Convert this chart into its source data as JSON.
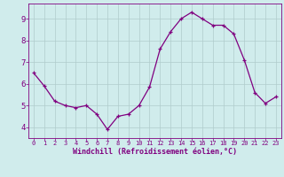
{
  "x": [
    0,
    1,
    2,
    3,
    4,
    5,
    6,
    7,
    8,
    9,
    10,
    11,
    12,
    13,
    14,
    15,
    16,
    17,
    18,
    19,
    20,
    21,
    22,
    23
  ],
  "y": [
    6.5,
    5.9,
    5.2,
    5.0,
    4.9,
    5.0,
    4.6,
    3.9,
    4.5,
    4.6,
    5.0,
    5.85,
    7.6,
    8.4,
    9.0,
    9.3,
    9.0,
    8.7,
    8.7,
    8.3,
    7.1,
    5.6,
    5.1,
    5.4
  ],
  "xlim": [
    -0.5,
    23.5
  ],
  "ylim": [
    3.5,
    9.7
  ],
  "yticks": [
    4,
    5,
    6,
    7,
    8,
    9
  ],
  "xticks": [
    0,
    1,
    2,
    3,
    4,
    5,
    6,
    7,
    8,
    9,
    10,
    11,
    12,
    13,
    14,
    15,
    16,
    17,
    18,
    19,
    20,
    21,
    22,
    23
  ],
  "xlabel": "Windchill (Refroidissement éolien,°C)",
  "line_color": "#800080",
  "marker_color": "#800080",
  "bg_color": "#d0ecec",
  "grid_color": "#b0cccc",
  "xlabel_color": "#800080",
  "tick_color": "#800080",
  "spine_color": "#800080",
  "figsize": [
    3.2,
    2.0
  ],
  "dpi": 100
}
